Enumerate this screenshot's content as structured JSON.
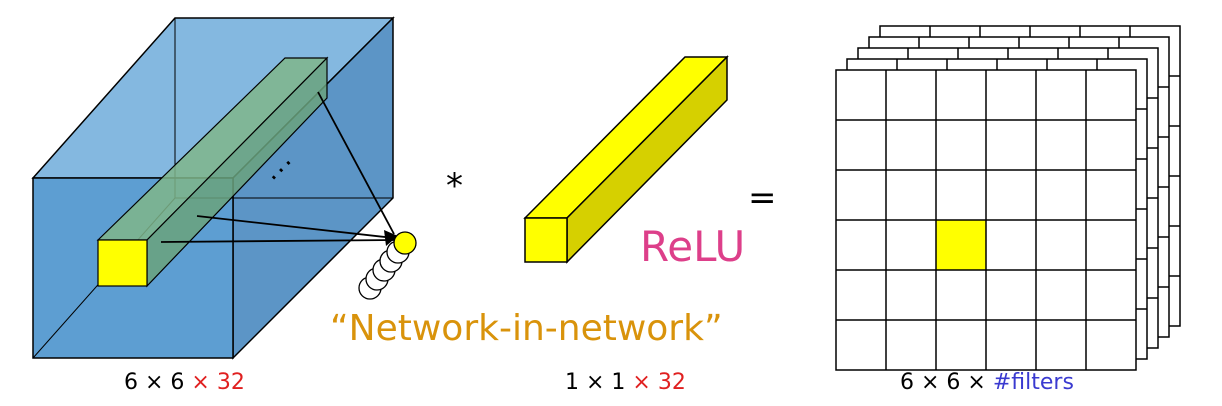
{
  "diagram": {
    "operator_convolve": "*",
    "operator_equals": "=",
    "activation": "ReLU",
    "technique_label": "“Network-in-network”",
    "ellipsis": "...",
    "inputs": {
      "volume": {
        "dims": "6 × 6 ",
        "channels": "× 32"
      },
      "filter": {
        "dims": "1 × 1 ",
        "channels": "× 32"
      },
      "output": {
        "dims": "6 × 6 × ",
        "channels": "#filters"
      }
    },
    "output_grid": {
      "rows": 6,
      "cols": 6,
      "highlight_row": 3,
      "highlight_col": 2,
      "stacked_layers": 5
    },
    "colors": {
      "volume_front": "#5d9ed2",
      "volume_top": "#84b8e0",
      "volume_side": "#5c95c6",
      "tube": "#7fb58a",
      "highlight": "#ffff00",
      "relu": "#dd3f8a",
      "nin": "#d9930b",
      "channels_red": "#e02020",
      "filters_blue": "#3a3ad0"
    }
  }
}
